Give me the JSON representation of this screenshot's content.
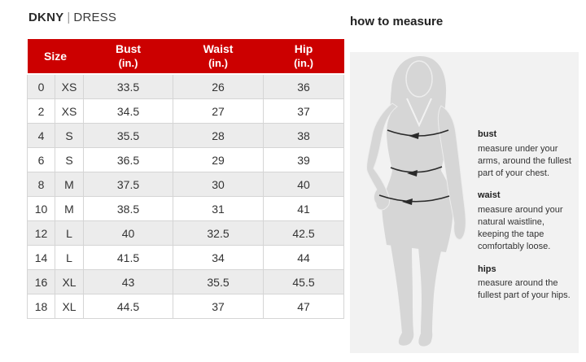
{
  "page_title": {
    "brand": "DKNY",
    "separator": "|",
    "product": "DRESS"
  },
  "size_chart": {
    "columns": [
      {
        "label": "Size",
        "unit": ""
      },
      {
        "label": "Bust",
        "unit": "(in.)"
      },
      {
        "label": "Waist",
        "unit": "(in.)"
      },
      {
        "label": "Hip",
        "unit": "(in.)"
      }
    ],
    "rows": [
      {
        "size_num": "0",
        "size_letter": "XS",
        "bust": "33.5",
        "waist": "26",
        "hip": "36"
      },
      {
        "size_num": "2",
        "size_letter": "XS",
        "bust": "34.5",
        "waist": "27",
        "hip": "37"
      },
      {
        "size_num": "4",
        "size_letter": "S",
        "bust": "35.5",
        "waist": "28",
        "hip": "38"
      },
      {
        "size_num": "6",
        "size_letter": "S",
        "bust": "36.5",
        "waist": "29",
        "hip": "39"
      },
      {
        "size_num": "8",
        "size_letter": "M",
        "bust": "37.5",
        "waist": "30",
        "hip": "40"
      },
      {
        "size_num": "10",
        "size_letter": "M",
        "bust": "38.5",
        "waist": "31",
        "hip": "41"
      },
      {
        "size_num": "12",
        "size_letter": "L",
        "bust": "40",
        "waist": "32.5",
        "hip": "42.5"
      },
      {
        "size_num": "14",
        "size_letter": "L",
        "bust": "41.5",
        "waist": "34",
        "hip": "44"
      },
      {
        "size_num": "16",
        "size_letter": "XL",
        "bust": "43",
        "waist": "35.5",
        "hip": "45.5"
      },
      {
        "size_num": "18",
        "size_letter": "XL",
        "bust": "44.5",
        "waist": "37",
        "hip": "47"
      }
    ]
  },
  "how_to_measure": {
    "title": "how to measure",
    "sections": [
      {
        "label": "bust",
        "text": "measure under your arms, around the fullest part of your chest."
      },
      {
        "label": "waist",
        "text": "measure around your natural waistline, keeping the tape comfortably loose."
      },
      {
        "label": "hips",
        "text": "measure around the fullest part of your hips."
      }
    ]
  },
  "colors": {
    "header_red": "#cc0000",
    "row_alt_gray": "#ececec",
    "cell_border": "#d5d5d5",
    "panel_bg": "#f2f2f2",
    "silhouette_gray": "#d6d6d6",
    "arrow_dark": "#2a2a2a"
  },
  "icons": {
    "figure": "woman-silhouette-figure",
    "arrows": "measure-tape-arrow"
  }
}
